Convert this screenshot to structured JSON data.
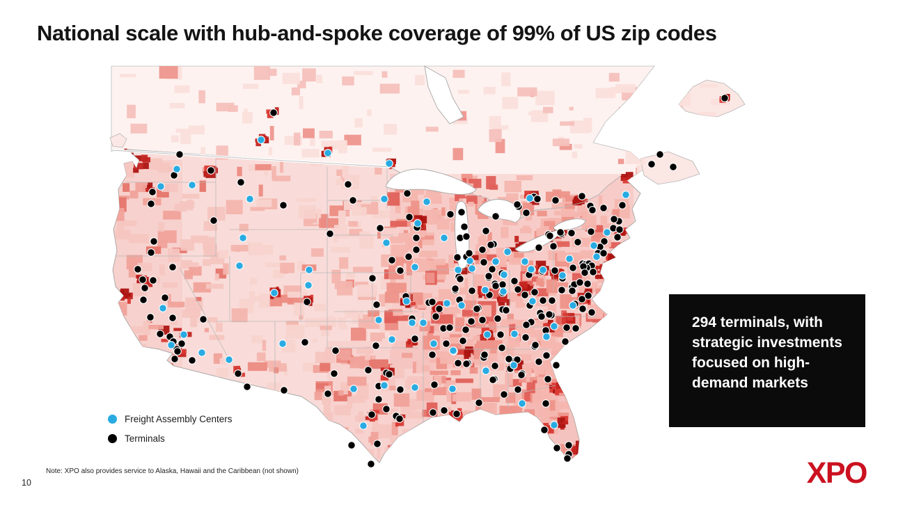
{
  "slide": {
    "title": "National scale with hub-and-spoke coverage of 99% of US zip codes",
    "page_number": "10",
    "note": "Note: XPO also provides service to Alaska, Hawaii and the Caribbean (not shown)",
    "logo_text": "XPO"
  },
  "callout": {
    "lines": [
      "294 terminals, with",
      "strategic investments",
      "focused on high-",
      "demand markets"
    ],
    "background": "#0b0b0b",
    "text_color": "#ffffff"
  },
  "legend": {
    "items": [
      {
        "label": "Freight Assembly Centers",
        "color": "#29ABE2"
      },
      {
        "label": "Terminals",
        "color": "#000000"
      }
    ]
  },
  "colors": {
    "fac_blue": "#29ABE2",
    "terminal_black": "#000000",
    "logo_red": "#cb1120",
    "map_base_us": "#f9dcd9",
    "map_base_canada": "#fdf2f0",
    "map_hot_red": "#d93a34",
    "map_dark_red": "#ad1512",
    "border_gray": "#b9b9b9"
  },
  "map": {
    "terminals": [
      [
        393,
        162
      ],
      [
        258,
        222
      ],
      [
        250,
        252
      ],
      [
        219,
        276
      ],
      [
        217,
        293
      ],
      [
        303,
        245
      ],
      [
        346,
        262
      ],
      [
        407,
        295
      ],
      [
        307,
        317
      ],
      [
        221,
        347
      ],
      [
        217,
        363
      ],
      [
        248,
        384
      ],
      [
        198,
        387
      ],
      [
        205,
        402
      ],
      [
        220,
        403
      ],
      [
        208,
        414
      ],
      [
        206,
        431
      ],
      [
        237,
        428
      ],
      [
        216,
        456
      ],
      [
        248,
        457
      ],
      [
        292,
        459
      ],
      [
        230,
        480
      ],
      [
        244,
        484
      ],
      [
        249,
        491
      ],
      [
        261,
        494
      ],
      [
        254,
        502
      ],
      [
        255,
        505
      ],
      [
        251,
        516
      ],
      [
        276,
        518
      ],
      [
        342,
        537
      ],
      [
        355,
        556
      ],
      [
        408,
        561
      ],
      [
        438,
        492
      ],
      [
        441,
        434
      ],
      [
        500,
        265
      ],
      [
        507,
        288
      ],
      [
        585,
        278
      ],
      [
        474,
        336
      ],
      [
        546,
        328
      ],
      [
        535,
        400
      ],
      [
        541,
        438
      ],
      [
        563,
        374
      ],
      [
        574,
        388
      ],
      [
        616,
        435
      ],
      [
        621,
        434
      ],
      [
        626,
        455
      ],
      [
        637,
        472
      ],
      [
        646,
        471
      ],
      [
        631,
        444
      ],
      [
        592,
        458
      ],
      [
        583,
        426
      ],
      [
        588,
        312
      ],
      [
        599,
        327
      ],
      [
        598,
        342
      ],
      [
        598,
        359
      ],
      [
        587,
        369
      ],
      [
        575,
        389
      ],
      [
        647,
        308
      ],
      [
        663,
        305
      ],
      [
        667,
        326
      ],
      [
        661,
        342
      ],
      [
        670,
        340
      ],
      [
        657,
        370
      ],
      [
        670,
        369
      ],
      [
        674,
        364
      ],
      [
        659,
        398
      ],
      [
        654,
        417
      ],
      [
        660,
        431
      ],
      [
        678,
        418
      ],
      [
        687,
        443
      ],
      [
        677,
        462
      ],
      [
        669,
        474
      ],
      [
        712,
        311
      ],
      [
        698,
        332
      ],
      [
        709,
        351
      ],
      [
        693,
        359
      ],
      [
        705,
        352
      ],
      [
        695,
        377
      ],
      [
        707,
        387
      ],
      [
        702,
        399
      ],
      [
        711,
        408
      ],
      [
        723,
        395
      ],
      [
        722,
        409
      ],
      [
        722,
        445
      ],
      [
        727,
        446
      ],
      [
        745,
        297
      ],
      [
        743,
        294
      ],
      [
        774,
        356
      ],
      [
        788,
        337
      ],
      [
        795,
        354
      ],
      [
        806,
        336
      ],
      [
        764,
        388
      ],
      [
        779,
        390
      ],
      [
        797,
        389
      ],
      [
        744,
        416
      ],
      [
        739,
        404
      ],
      [
        754,
        424
      ],
      [
        768,
        420
      ],
      [
        780,
        432
      ],
      [
        793,
        432
      ],
      [
        761,
        439
      ],
      [
        776,
        450
      ],
      [
        763,
        463
      ],
      [
        784,
        475
      ],
      [
        792,
        453
      ],
      [
        807,
        417
      ],
      [
        822,
        413
      ],
      [
        808,
        400
      ],
      [
        767,
        283
      ],
      [
        772,
        286
      ],
      [
        756,
        306
      ],
      [
        798,
        288
      ],
      [
        836,
        282
      ],
      [
        948,
        222
      ],
      [
        936,
        236
      ],
      [
        967,
        240
      ],
      [
        1041,
        141
      ],
      [
        821,
        335
      ],
      [
        849,
        333
      ],
      [
        881,
        328
      ],
      [
        890,
        330
      ],
      [
        830,
        348
      ],
      [
        868,
        347
      ],
      [
        862,
        355
      ],
      [
        859,
        364
      ],
      [
        867,
        364
      ],
      [
        837,
        379
      ],
      [
        841,
        380
      ],
      [
        846,
        379
      ],
      [
        850,
        382
      ],
      [
        843,
        385
      ],
      [
        838,
        383
      ],
      [
        823,
        385
      ],
      [
        852,
        391
      ],
      [
        840,
        392
      ],
      [
        825,
        409
      ],
      [
        822,
        418
      ],
      [
        844,
        408
      ],
      [
        848,
        296
      ],
      [
        851,
        302
      ],
      [
        867,
        299
      ],
      [
        887,
        341
      ],
      [
        889,
        318
      ],
      [
        882,
        315
      ],
      [
        894,
        295
      ],
      [
        805,
        334
      ],
      [
        790,
        339
      ],
      [
        833,
        406
      ],
      [
        845,
        425
      ],
      [
        836,
        430
      ],
      [
        826,
        437
      ],
      [
        837,
        444
      ],
      [
        850,
        449
      ],
      [
        661,
        401
      ],
      [
        702,
        397
      ],
      [
        721,
        393
      ],
      [
        760,
        395
      ],
      [
        654,
        415
      ],
      [
        712,
        411
      ],
      [
        722,
        421
      ],
      [
        703,
        424
      ],
      [
        685,
        444
      ],
      [
        715,
        458
      ],
      [
        693,
        460
      ],
      [
        719,
        481
      ],
      [
        756,
        467
      ],
      [
        778,
        455
      ],
      [
        789,
        452
      ],
      [
        814,
        471
      ],
      [
        827,
        472
      ],
      [
        812,
        491
      ],
      [
        768,
        498
      ],
      [
        785,
        511
      ],
      [
        774,
        520
      ],
      [
        750,
        537
      ],
      [
        710,
        545
      ],
      [
        672,
        522
      ],
      [
        695,
        514
      ],
      [
        731,
        517
      ],
      [
        739,
        519
      ],
      [
        787,
        545
      ],
      [
        482,
        504
      ],
      [
        480,
        537
      ],
      [
        471,
        566
      ],
      [
        529,
        532
      ],
      [
        555,
        536
      ],
      [
        559,
        538
      ],
      [
        544,
        555
      ],
      [
        575,
        560
      ],
      [
        544,
        574
      ],
      [
        555,
        588
      ],
      [
        569,
        598
      ],
      [
        574,
        602
      ],
      [
        534,
        596
      ],
      [
        505,
        640
      ],
      [
        542,
        638
      ],
      [
        533,
        667
      ],
      [
        596,
        487
      ],
      [
        540,
        497
      ],
      [
        641,
        494
      ],
      [
        665,
        490
      ],
      [
        658,
        522
      ],
      [
        670,
        523
      ],
      [
        696,
        510
      ],
      [
        711,
        526
      ],
      [
        621,
        510
      ],
      [
        624,
        553
      ],
      [
        622,
        593
      ],
      [
        638,
        590
      ],
      [
        656,
        595
      ],
      [
        688,
        579
      ],
      [
        708,
        546
      ],
      [
        755,
        485
      ],
      [
        769,
        496
      ],
      [
        721,
        500
      ],
      [
        731,
        516
      ],
      [
        743,
        517
      ],
      [
        733,
        530
      ],
      [
        749,
        539
      ],
      [
        799,
        525
      ],
      [
        724,
        567
      ],
      [
        744,
        560
      ],
      [
        784,
        580
      ],
      [
        782,
        618
      ],
      [
        800,
        644
      ],
      [
        817,
        640
      ],
      [
        817,
        653
      ],
      [
        815,
        659
      ]
    ],
    "freight_assembly_centers": [
      [
        375,
        201
      ],
      [
        471,
        220
      ],
      [
        559,
        235
      ],
      [
        254,
        243
      ],
      [
        231,
        268
      ],
      [
        276,
        266
      ],
      [
        359,
        286
      ],
      [
        552,
        286
      ],
      [
        613,
        290
      ],
      [
        349,
        342
      ],
      [
        344,
        382
      ],
      [
        600,
        321
      ],
      [
        638,
        342
      ],
      [
        555,
        349
      ],
      [
        444,
        388
      ],
      [
        443,
        410
      ],
      [
        394,
        421
      ],
      [
        234,
        443
      ],
      [
        596,
        384
      ],
      [
        584,
        433
      ],
      [
        544,
        460
      ],
      [
        592,
        464
      ],
      [
        608,
        464
      ],
      [
        642,
        436
      ],
      [
        663,
        439
      ],
      [
        675,
        375
      ],
      [
        678,
        386
      ],
      [
        658,
        388
      ],
      [
        712,
        376
      ],
      [
        729,
        362
      ],
      [
        754,
        376
      ],
      [
        697,
        417
      ],
      [
        723,
        419
      ],
      [
        763,
        387
      ],
      [
        780,
        388
      ],
      [
        808,
        396
      ],
      [
        724,
        395
      ],
      [
        765,
        433
      ],
      [
        700,
        481
      ],
      [
        739,
        480
      ],
      [
        796,
        469
      ],
      [
        785,
        484
      ],
      [
        823,
        439
      ],
      [
        652,
        505
      ],
      [
        738,
        525
      ],
      [
        698,
        533
      ],
      [
        264,
        481
      ],
      [
        246,
        496
      ],
      [
        290,
        507
      ],
      [
        329,
        517
      ],
      [
        406,
        494
      ],
      [
        761,
        285
      ],
      [
        872,
        334
      ],
      [
        853,
        353
      ],
      [
        857,
        369
      ],
      [
        818,
        372
      ],
      [
        899,
        280
      ],
      [
        522,
        612
      ],
      [
        552,
        554
      ],
      [
        563,
        488
      ],
      [
        596,
        557
      ],
      [
        623,
        494
      ],
      [
        650,
        559
      ],
      [
        651,
        504
      ],
      [
        750,
        580
      ],
      [
        796,
        611
      ],
      [
        508,
        559
      ]
    ]
  }
}
